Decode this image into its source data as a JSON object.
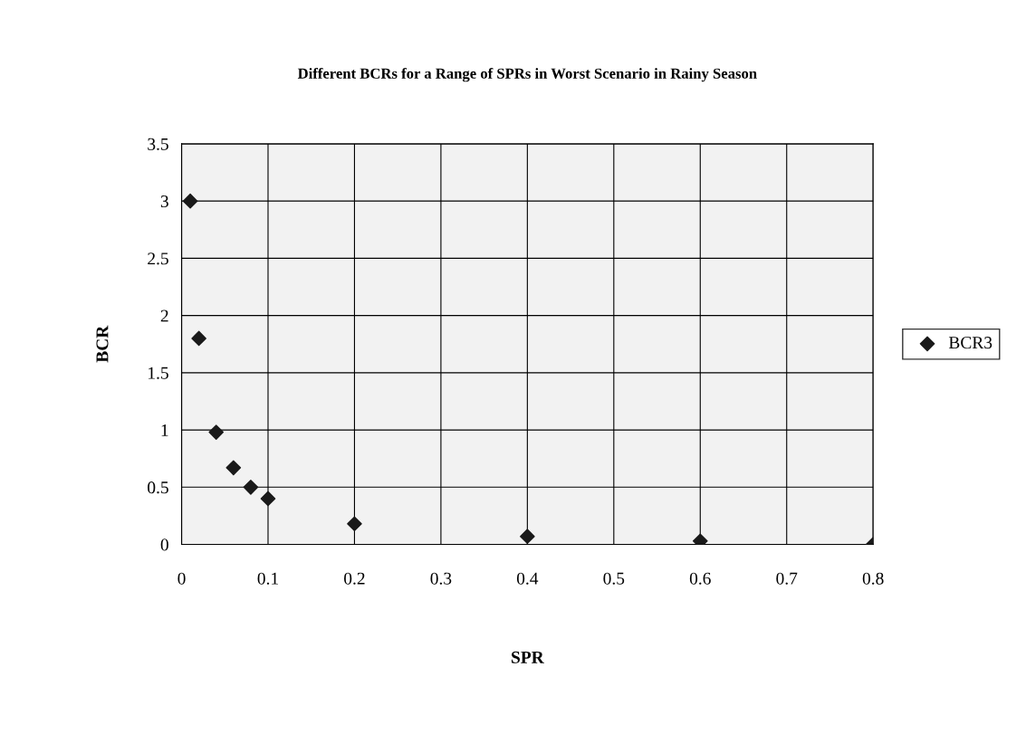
{
  "chart_data": {
    "type": "scatter",
    "title": "Different BCRs for a Range of SPRs in Worst Scenario in Rainy Season",
    "xlabel": "SPR",
    "ylabel": "BCR",
    "x": [
      0.01,
      0.02,
      0.04,
      0.06,
      0.08,
      0.1,
      0.2,
      0.4,
      0.6,
      0.8
    ],
    "series": [
      {
        "name": "BCR3",
        "color": "#1a1a1a",
        "values": [
          3.0,
          1.8,
          0.98,
          0.67,
          0.5,
          0.4,
          0.18,
          0.07,
          0.03,
          0.0
        ]
      }
    ],
    "xlim": [
      0,
      0.8
    ],
    "xticks": [
      0,
      0.1,
      0.2,
      0.3,
      0.4,
      0.5,
      0.6,
      0.7,
      0.8
    ],
    "ylim": [
      0,
      3.5
    ],
    "yticks": [
      0,
      0.5,
      1,
      1.5,
      2,
      2.5,
      3,
      3.5
    ],
    "grid": true,
    "legend": "right",
    "marker": "diamond"
  }
}
